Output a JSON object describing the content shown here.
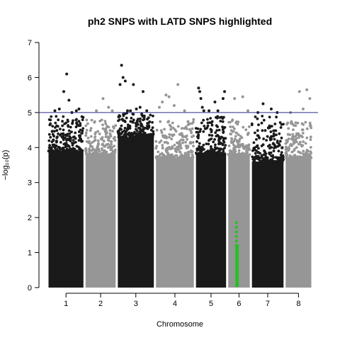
{
  "chart_data": {
    "type": "scatter",
    "title": "ph2 SNPS with LATD SNPS highlighted",
    "xlabel": "Chromosome",
    "ylabel": "−log₁₀(p)",
    "ylim": [
      0,
      7
    ],
    "yticks": [
      0,
      1,
      2,
      3,
      4,
      5,
      6,
      7
    ],
    "threshold": 5,
    "grid": false,
    "legend": "none",
    "colors": {
      "odd": "#1a1a1a",
      "even": "#969696",
      "highlight": "#22c322",
      "threshold_line": "#2b2b8c"
    },
    "chromosomes": [
      {
        "label": "1",
        "start": 0,
        "end": 100,
        "bulk_top": 3.9,
        "upper_max": 4.9,
        "sparse": [
          [
            20,
            5.05
          ],
          [
            32,
            5.1
          ],
          [
            44,
            5.6
          ],
          [
            52,
            6.1
          ],
          [
            58,
            5.35
          ],
          [
            66,
            5.0
          ],
          [
            78,
            5.05
          ],
          [
            85,
            5.1
          ]
        ]
      },
      {
        "label": "2",
        "start": 100,
        "end": 187,
        "bulk_top": 3.8,
        "upper_max": 4.8,
        "sparse": [
          [
            132,
            5.05
          ],
          [
            150,
            5.4
          ],
          [
            165,
            5.15
          ],
          [
            175,
            5.05
          ]
        ]
      },
      {
        "label": "3",
        "start": 187,
        "end": 290,
        "bulk_top": 4.3,
        "upper_max": 5.0,
        "sparse": [
          [
            196,
            5.8
          ],
          [
            200,
            6.35
          ],
          [
            204,
            6.0
          ],
          [
            210,
            5.9
          ],
          [
            216,
            5.05
          ],
          [
            224,
            5.05
          ],
          [
            232,
            5.8
          ],
          [
            240,
            5.1
          ],
          [
            250,
            5.15
          ],
          [
            258,
            5.6
          ],
          [
            268,
            5.05
          ]
        ]
      },
      {
        "label": "4",
        "start": 290,
        "end": 398,
        "bulk_top": 3.7,
        "upper_max": 4.8,
        "sparse": [
          [
            302,
            5.15
          ],
          [
            310,
            5.3
          ],
          [
            320,
            5.5
          ],
          [
            328,
            5.45
          ],
          [
            342,
            5.2
          ],
          [
            352,
            5.8
          ],
          [
            370,
            5.05
          ]
        ]
      },
      {
        "label": "5",
        "start": 398,
        "end": 485,
        "bulk_top": 3.8,
        "upper_max": 4.9,
        "sparse": [
          [
            408,
            5.7
          ],
          [
            411,
            5.6
          ],
          [
            414,
            5.4
          ],
          [
            418,
            5.15
          ],
          [
            422,
            5.05
          ],
          [
            436,
            5.05
          ],
          [
            452,
            5.3
          ],
          [
            460,
            5.05
          ],
          [
            474,
            5.4
          ],
          [
            478,
            5.6
          ]
        ]
      },
      {
        "label": "6",
        "start": 485,
        "end": 549,
        "bulk_top": 3.8,
        "upper_max": 4.8,
        "sparse": [
          [
            505,
            5.4
          ],
          [
            527,
            5.45
          ],
          [
            541,
            5.05
          ]
        ]
      },
      {
        "label": "7",
        "start": 549,
        "end": 640,
        "bulk_top": 3.6,
        "upper_max": 4.9,
        "sparse": [
          [
            568,
            5.0
          ],
          [
            582,
            5.25
          ],
          [
            604,
            5.1
          ],
          [
            620,
            5.0
          ]
        ]
      },
      {
        "label": "8",
        "start": 640,
        "end": 715,
        "bulk_top": 3.7,
        "upper_max": 4.8,
        "sparse": [
          [
            656,
            5.0
          ],
          [
            680,
            5.6
          ],
          [
            690,
            5.1
          ],
          [
            700,
            5.65
          ],
          [
            708,
            5.4
          ]
        ]
      }
    ],
    "highlighted_snps": [
      {
        "chromosome": "6",
        "x": 510,
        "y_range": [
          0.02,
          1.95
        ]
      },
      {
        "chromosome": "6",
        "x": 513,
        "y_range": [
          0.02,
          1.2
        ]
      }
    ]
  }
}
